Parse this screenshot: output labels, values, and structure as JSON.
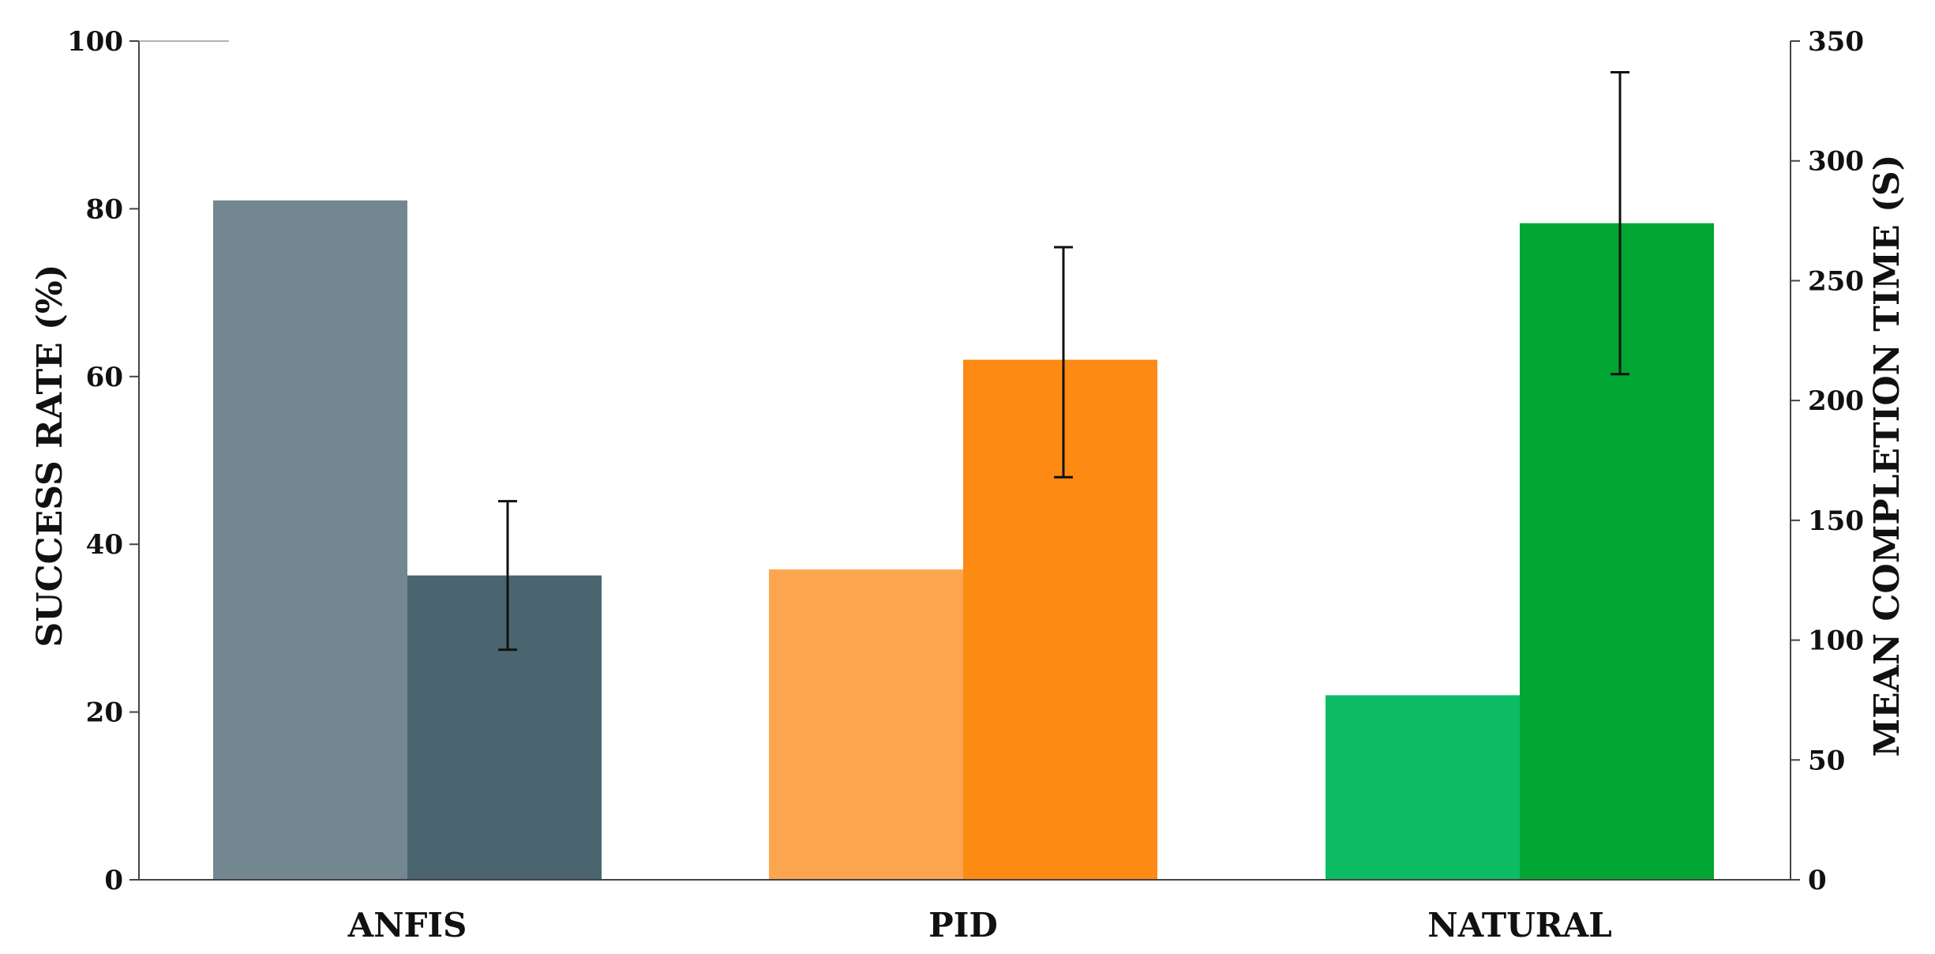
{
  "chart_data": {
    "type": "bar",
    "categories": [
      "ANFIS",
      "PID",
      "NATURAL"
    ],
    "y_left": {
      "label": "SUCCESS RATE (%)",
      "range": [
        0,
        100
      ],
      "ticks": [
        "0",
        "20",
        "40",
        "60",
        "80",
        "100"
      ]
    },
    "y_right": {
      "label": "MEAN COMPLETION TIME (S)",
      "range": [
        0,
        350
      ],
      "ticks": [
        "0",
        "50",
        "100",
        "150",
        "200",
        "250",
        "300",
        "350"
      ]
    },
    "series": [
      {
        "axis": "left",
        "values": [
          81,
          37,
          22
        ],
        "colors": [
          "#72878f",
          "#fca550",
          "#0cbc64"
        ]
      },
      {
        "axis": "right",
        "values": [
          127,
          217,
          274
        ],
        "errors_low": [
          96,
          168,
          211
        ],
        "errors_high": [
          158,
          264,
          337
        ],
        "colors": [
          "#4a6570",
          "#fd8a13",
          "#02a632"
        ]
      }
    ],
    "grid": false,
    "legend": "none"
  }
}
